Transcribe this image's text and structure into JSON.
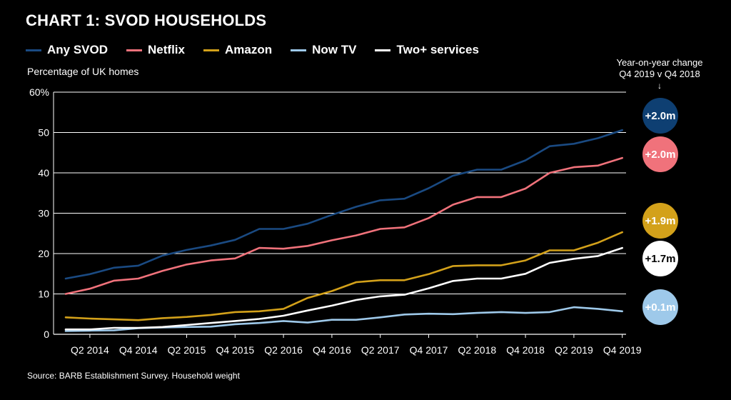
{
  "chart_data": {
    "type": "line",
    "title": "CHART 1: SVOD HOUSEHOLDS",
    "ylabel": "Percentage of UK homes",
    "xlabel": "",
    "ylim": [
      0,
      60
    ],
    "yticks": [
      0,
      10,
      20,
      30,
      40,
      50,
      60
    ],
    "ytick_labels": [
      "0",
      "10",
      "20",
      "30",
      "40",
      "50",
      "60%"
    ],
    "tick_labels": [
      "Q2 2014",
      "Q4 2014",
      "Q2 2015",
      "Q4 2015",
      "Q2 2016",
      "Q4 2016",
      "Q2 2017",
      "Q4 2017",
      "Q2 2018",
      "Q4 2018",
      "Q2 2019",
      "Q4 2019"
    ],
    "tick_positions": [
      2,
      4,
      6,
      8,
      10,
      12,
      14,
      16,
      18,
      20,
      22,
      24
    ],
    "x": [
      1,
      2,
      3,
      4,
      5,
      6,
      7,
      8,
      9,
      10,
      11,
      12,
      13,
      14,
      15,
      16,
      17,
      18,
      19,
      20,
      21,
      22,
      23,
      24
    ],
    "series": [
      {
        "name": "Any SVOD",
        "color": "#1a4a82",
        "values": [
          13.8,
          14.9,
          16.5,
          17.0,
          19.5,
          20.9,
          22.0,
          23.4,
          26.1,
          26.1,
          27.4,
          29.6,
          31.6,
          33.2,
          33.6,
          36.2,
          39.3,
          40.8,
          40.8,
          43.1,
          46.6,
          47.2,
          48.6,
          50.6
        ]
      },
      {
        "name": "Netflix",
        "color": "#f0727b",
        "values": [
          10.0,
          11.3,
          13.3,
          13.8,
          15.7,
          17.3,
          18.3,
          18.8,
          21.4,
          21.2,
          21.9,
          23.3,
          24.5,
          26.1,
          26.5,
          28.8,
          32.1,
          34.0,
          34.0,
          36.1,
          40.0,
          41.4,
          41.8,
          43.7
        ]
      },
      {
        "name": "Amazon",
        "color": "#d3a11a",
        "values": [
          4.2,
          3.9,
          3.7,
          3.5,
          4.0,
          4.3,
          4.8,
          5.5,
          5.7,
          6.3,
          9.0,
          10.7,
          12.9,
          13.4,
          13.4,
          14.9,
          16.9,
          17.1,
          17.1,
          18.3,
          20.8,
          20.8,
          22.7,
          25.3
        ]
      },
      {
        "name": "Now TV",
        "color": "#9ec9ea",
        "values": [
          0.8,
          0.9,
          1.0,
          1.5,
          1.7,
          1.8,
          1.9,
          2.5,
          2.8,
          3.3,
          2.9,
          3.6,
          3.6,
          4.2,
          4.9,
          5.1,
          5.0,
          5.3,
          5.5,
          5.3,
          5.5,
          6.7,
          6.3,
          5.7
        ]
      },
      {
        "name": "Two+ services",
        "color": "#ffffff",
        "values": [
          1.2,
          1.2,
          1.6,
          1.6,
          1.8,
          2.3,
          2.8,
          3.3,
          3.8,
          4.6,
          5.9,
          7.1,
          8.5,
          9.4,
          9.8,
          11.4,
          13.2,
          13.8,
          13.8,
          15.0,
          17.7,
          18.7,
          19.4,
          21.4
        ]
      }
    ],
    "yoy_change": [
      {
        "series": "Any SVOD",
        "label": "+2.0m",
        "color": "#0e3f72",
        "text_color": "#ffffff"
      },
      {
        "series": "Netflix",
        "label": "+2.0m",
        "color": "#f0727b",
        "text_color": "#ffffff"
      },
      {
        "series": "Amazon",
        "label": "+1.9m",
        "color": "#d3a11a",
        "text_color": "#ffffff"
      },
      {
        "series": "Two+ services",
        "label": "+1.7m",
        "color": "#ffffff",
        "text_color": "#000000"
      },
      {
        "series": "Now TV",
        "label": "+0.1m",
        "color": "#9ec9ea",
        "text_color": "#ffffff"
      }
    ]
  },
  "yoy_header": {
    "line1": "Year-on-year change",
    "line2": "Q4 2019 v Q4 2018",
    "arrow": "↓"
  },
  "source": "Source: BARB Establishment Survey. Household weight",
  "colors": {
    "background": "#000000",
    "text": "#ffffff",
    "grid": "#ffffff"
  }
}
